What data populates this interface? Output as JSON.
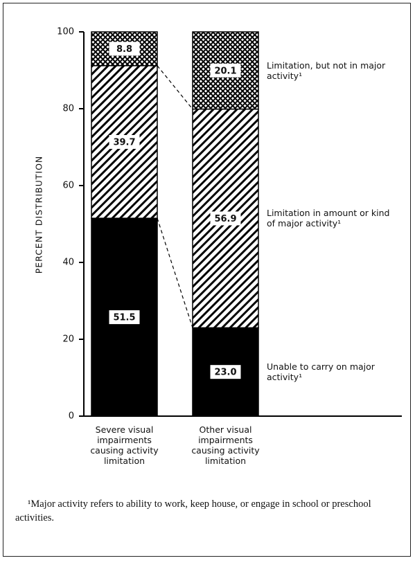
{
  "chart_data": {
    "type": "stacked_bar",
    "y_axis_label": "PERCENT DISTRIBUTION",
    "categories": [
      "Severe visual impairments causing activity limitation",
      "Other visual impairments causing activity limitation"
    ],
    "series": [
      {
        "name": "Unable to carry on major activity¹",
        "color": "#000000",
        "pattern": "solid",
        "values": [
          51.5,
          23.0
        ],
        "value_labels": [
          "51.5",
          "23.0"
        ]
      },
      {
        "name": "Limitation in amount or kind of major activity¹",
        "color": "#000000",
        "pattern": "diagonal",
        "values": [
          39.7,
          56.9
        ],
        "value_labels": [
          "39.7",
          "56.9"
        ]
      },
      {
        "name": "Limitation, but not in major activity¹",
        "color": "#000000",
        "pattern": "crosshatch",
        "values": [
          8.8,
          20.1
        ],
        "value_labels": [
          "8.8",
          "20.1"
        ]
      }
    ],
    "ylim": [
      0,
      100
    ],
    "yticks": [
      0,
      20,
      40,
      60,
      80,
      100
    ],
    "footnote": "¹Major activity refers to ability to work, keep house, or engage in school or preschool activities."
  }
}
